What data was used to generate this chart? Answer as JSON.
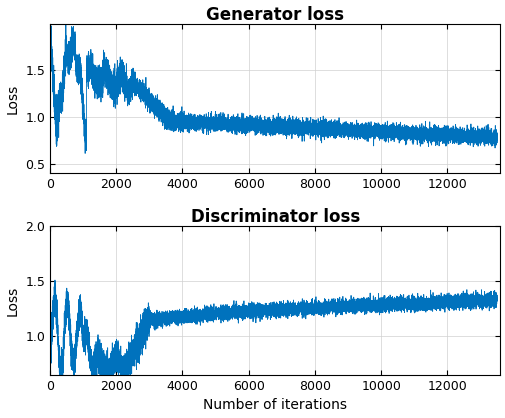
{
  "title1": "Generator loss",
  "title2": "Discriminator loss",
  "xlabel": "Number of iterations",
  "ylabel": "Loss",
  "line_color": "#0072BD",
  "n_iter": 13500,
  "gen_ylim": [
    0.4,
    2.0
  ],
  "disc_ylim": [
    0.65,
    2.0
  ],
  "gen_yticks": [
    0.5,
    1.0,
    1.5
  ],
  "disc_yticks": [
    1.0,
    1.5,
    2.0
  ],
  "xticks": [
    0,
    2000,
    4000,
    6000,
    8000,
    10000,
    12000
  ],
  "title_fontsize": 12,
  "label_fontsize": 10,
  "tick_fontsize": 9,
  "line_width": 0.6,
  "seed": 42
}
